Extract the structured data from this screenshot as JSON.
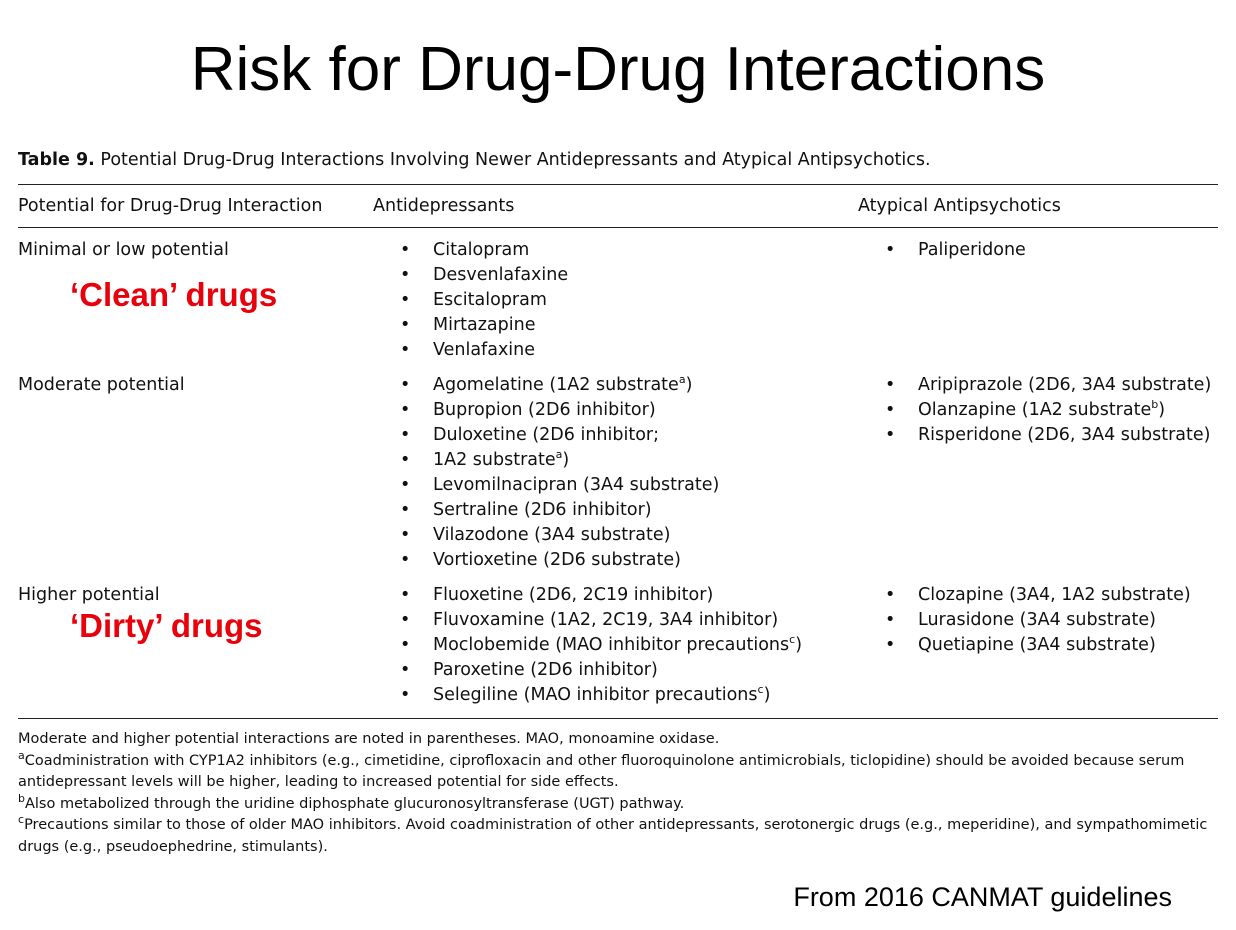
{
  "title": "Risk for Drug-Drug Interactions",
  "table": {
    "caption_label": "Table 9.",
    "caption": "Potential Drug-Drug Interactions Involving Newer Antidepressants and Atypical Antipsychotics.",
    "headers": [
      "Potential for Drug-Drug Interaction",
      "Antidepressants",
      "Atypical Antipsychotics"
    ],
    "rows": [
      {
        "label": "Minimal or low potential",
        "annotation": "‘Clean’ drugs",
        "antidepressants": [
          "Citalopram",
          "Desvenlafaxine",
          "Escitalopram",
          "Mirtazapine",
          "Venlafaxine"
        ],
        "antipsychotics": [
          "Paliperidone"
        ]
      },
      {
        "label": "Moderate potential",
        "antidepressants": [
          {
            "text": "Agomelatine (1A2 substrate",
            "sup": "a",
            "tail": ")"
          },
          "Bupropion (2D6 inhibitor)",
          "Duloxetine (2D6 inhibitor;",
          {
            "text": "1A2 substrate",
            "sup": "a",
            "tail": ")"
          },
          "Levomilnacipran (3A4 substrate)",
          "Sertraline (2D6 inhibitor)",
          "Vilazodone (3A4 substrate)",
          "Vortioxetine (2D6 substrate)"
        ],
        "antipsychotics": [
          "Aripiprazole (2D6, 3A4 substrate)",
          {
            "text": "Olanzapine (1A2 substrate",
            "sup": "b",
            "tail": ")"
          },
          "Risperidone (2D6, 3A4 substrate)"
        ]
      },
      {
        "label": "Higher potential",
        "annotation": "‘Dirty’ drugs",
        "antidepressants": [
          "Fluoxetine (2D6, 2C19 inhibitor)",
          "Fluvoxamine (1A2, 2C19, 3A4 inhibitor)",
          {
            "text": "Moclobemide (MAO inhibitor precautions",
            "sup": "c",
            "tail": ")"
          },
          "Paroxetine (2D6 inhibitor)",
          {
            "text": "Selegiline (MAO inhibitor precautions",
            "sup": "c",
            "tail": ")"
          }
        ],
        "antipsychotics": [
          "Clozapine (3A4, 1A2 substrate)",
          "Lurasidone (3A4 substrate)",
          "Quetiapine (3A4 substrate)"
        ]
      }
    ],
    "footnotes": [
      {
        "text": "Moderate and higher potential interactions are noted in parentheses. MAO, monoamine oxidase."
      },
      {
        "mark": "a",
        "text": "Coadministration with CYP1A2 inhibitors (e.g., cimetidine, ciprofloxacin and other fluoroquinolone antimicrobials, ticlopidine) should be avoided because serum antidepressant levels will be higher, leading to increased potential for side effects."
      },
      {
        "mark": "b",
        "text": "Also metabolized through the uridine diphosphate glucuronosyltransferase (UGT) pathway."
      },
      {
        "mark": "c",
        "text": "Precautions similar to those of older MAO inhibitors. Avoid coadministration of other antidepressants, serotonergic drugs (e.g., meperidine), and sympathomimetic drugs (e.g., pseudoephedrine, stimulants)."
      }
    ]
  },
  "source": "From 2016 CANMAT guidelines"
}
